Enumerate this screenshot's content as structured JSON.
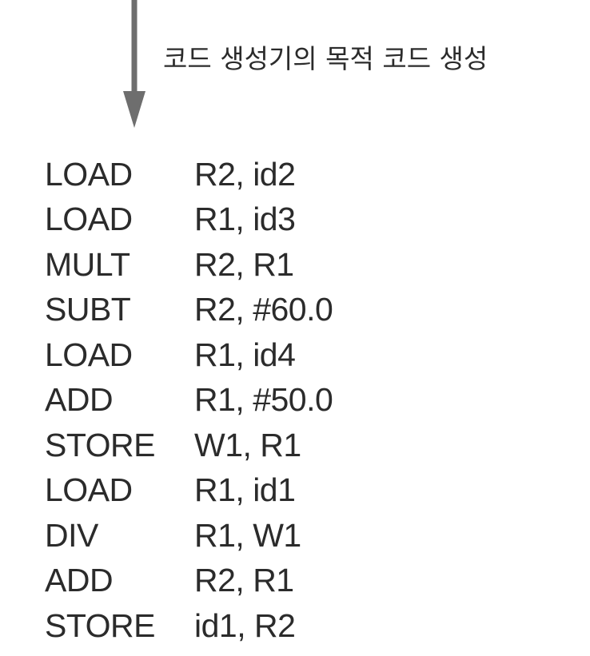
{
  "caption": "코드 생성기의 목적 코드 생성",
  "code": [
    {
      "op": "LOAD",
      "args": "R2, id2"
    },
    {
      "op": "LOAD",
      "args": "R1, id3"
    },
    {
      "op": "MULT",
      "args": "R2, R1"
    },
    {
      "op": "SUBT",
      "args": "R2, #60.0"
    },
    {
      "op": "LOAD",
      "args": "R1, id4"
    },
    {
      "op": "ADD",
      "args": "R1, #50.0"
    },
    {
      "op": "STORE",
      "args": "W1, R1"
    },
    {
      "op": "LOAD",
      "args": "R1, id1"
    },
    {
      "op": "DIV",
      "args": "R1, W1"
    },
    {
      "op": "ADD",
      "args": "R2, R1"
    },
    {
      "op": "STORE",
      "args": "id1, R2"
    }
  ],
  "colors": {
    "arrow": "#6e6e6e",
    "text": "#2b2b2b"
  }
}
